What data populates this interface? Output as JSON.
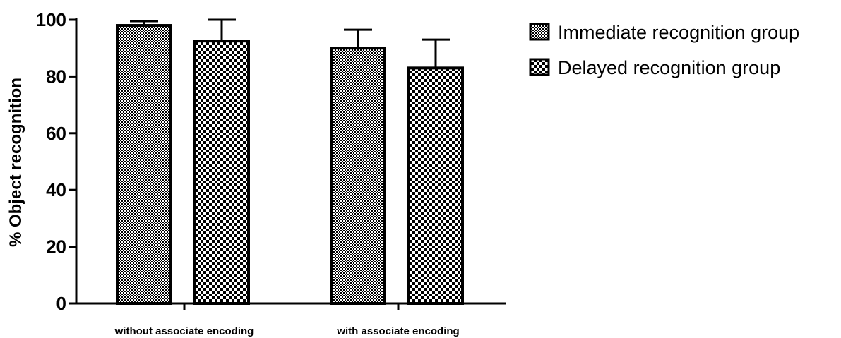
{
  "chart_data": {
    "type": "bar",
    "title": "",
    "xlabel": "",
    "ylabel": "% Object recognition",
    "ylim": [
      0,
      100
    ],
    "yticks": [
      0,
      20,
      40,
      60,
      80,
      100
    ],
    "categories": [
      "without associate encoding",
      "with associate encoding"
    ],
    "series": [
      {
        "name": "Immediate recognition group",
        "values": [
          98,
          90
        ],
        "errors": [
          1.5,
          6.5
        ],
        "pattern": "fine-check"
      },
      {
        "name": "Delayed recognition group",
        "values": [
          92.5,
          83
        ],
        "errors": [
          7.5,
          10
        ],
        "pattern": "coarse-check"
      }
    ],
    "legend_position": "top-right",
    "grid": false,
    "colors": {
      "bar_stroke": "#000000",
      "fill_dark": "#000000",
      "fill_light": "#ffffff"
    }
  }
}
